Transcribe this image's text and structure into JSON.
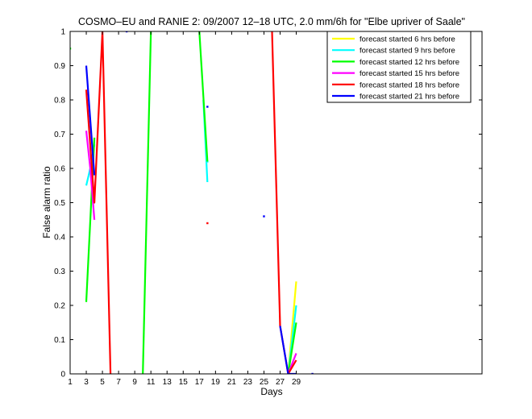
{
  "chart_data": {
    "type": "line",
    "title": "COSMO–EU and RANIE 2: 09/2007 12–18 UTC, 2.0 mm/6h for \"Elbe upriver of Saale\"",
    "xlabel": "Days",
    "ylabel": "False alarm ratio",
    "xlim": [
      1,
      52
    ],
    "ylim": [
      0,
      1
    ],
    "x_ticks": [
      1,
      3,
      5,
      7,
      9,
      11,
      13,
      15,
      17,
      19,
      21,
      23,
      25,
      27,
      29
    ],
    "y_ticks": [
      0,
      0.1,
      0.2,
      0.3,
      0.4,
      0.5,
      0.6,
      0.7,
      0.8,
      0.9,
      1
    ],
    "x_tick_labels": [
      "1",
      "3",
      "5",
      "7",
      "9",
      "11",
      "13",
      "15",
      "17",
      "19",
      "21",
      "23",
      "25",
      "27",
      "29"
    ],
    "y_tick_labels": [
      "0",
      "0.1",
      "0.2",
      "0.3",
      "0.4",
      "0.5",
      "0.6",
      "0.7",
      "0.8",
      "0.9",
      "1"
    ],
    "grid": false,
    "legend_position": "top-right",
    "series": [
      {
        "name": "forecast started 6 hrs before",
        "color": "#ffff00",
        "segments": [
          [
            [
              28.0,
              0.0
            ],
            [
              29.0,
              0.27
            ]
          ]
        ],
        "points": []
      },
      {
        "name": "forecast started 9 hrs before",
        "color": "#00ffff",
        "segments": [
          [
            [
              3.0,
              0.55
            ],
            [
              3.5,
              0.6
            ],
            [
              4.0,
              0.67
            ]
          ],
          [
            [
              17.5,
              0.8
            ],
            [
              18.0,
              0.56
            ]
          ],
          [
            [
              28.0,
              0.0
            ],
            [
              29.0,
              0.2
            ]
          ]
        ],
        "points": [
          [
            18.0,
            0.62
          ]
        ]
      },
      {
        "name": "forecast started 12 hrs before",
        "color": "#00ff00",
        "segments": [
          [
            [
              3.0,
              0.21
            ],
            [
              4.0,
              0.69
            ]
          ],
          [
            [
              10.0,
              0.0
            ],
            [
              11.0,
              1.0
            ]
          ],
          [
            [
              17.0,
              1.0
            ],
            [
              18.0,
              0.62
            ]
          ],
          [
            [
              28.0,
              0.0
            ],
            [
              29.0,
              0.15
            ]
          ]
        ],
        "points": [
          [
            1.0,
            0.95
          ]
        ]
      },
      {
        "name": "forecast started 15 hrs before",
        "color": "#ff00ff",
        "segments": [
          [
            [
              3.0,
              0.71
            ],
            [
              3.5,
              0.6
            ],
            [
              4.0,
              0.45
            ]
          ],
          [
            [
              28.0,
              0.0
            ],
            [
              29.0,
              0.06
            ]
          ]
        ],
        "points": []
      },
      {
        "name": "forecast started 18 hrs before",
        "color": "#ff0000",
        "segments": [
          [
            [
              3.0,
              0.83
            ],
            [
              4.0,
              0.5
            ],
            [
              5.0,
              1.0
            ],
            [
              6.0,
              0.0
            ]
          ],
          [
            [
              26.0,
              1.0
            ],
            [
              27.0,
              0.14
            ],
            [
              28.0,
              0.0
            ],
            [
              29.0,
              0.04
            ]
          ]
        ],
        "points": [
          [
            18.0,
            0.44
          ]
        ]
      },
      {
        "name": "forecast started 21 hrs before",
        "color": "#0000ff",
        "segments": [
          [
            [
              3.0,
              0.9
            ],
            [
              4.0,
              0.58
            ]
          ],
          [
            [
              27.0,
              0.14
            ],
            [
              28.0,
              0.0
            ],
            [
              29.0,
              0.0
            ]
          ]
        ],
        "points": [
          [
            8.0,
            1.0
          ],
          [
            18.0,
            0.78
          ],
          [
            25.0,
            0.46
          ],
          [
            31.0,
            0.0
          ]
        ]
      }
    ]
  }
}
